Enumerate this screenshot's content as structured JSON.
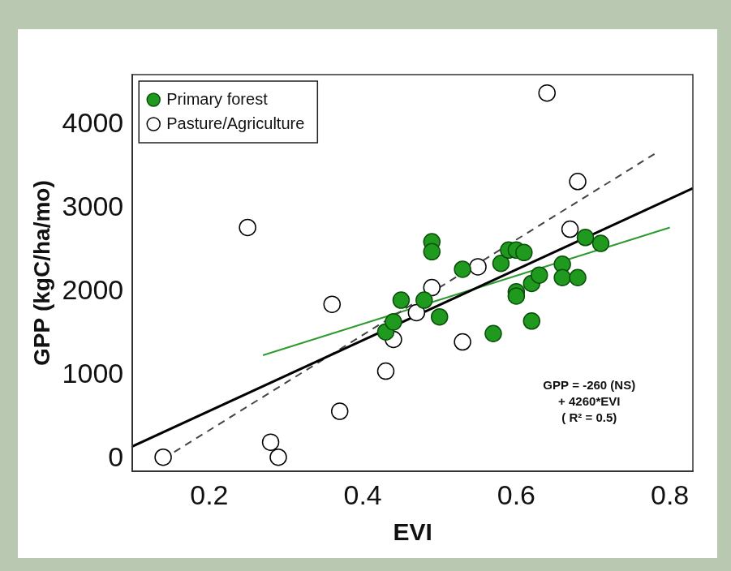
{
  "chart_data": {
    "type": "scatter",
    "x_label": "EVI",
    "y_label": "GPP (kgC/ha/mo)",
    "xlim": [
      0.1,
      0.83
    ],
    "xticks": [
      0.2,
      0.4,
      0.6,
      0.8
    ],
    "ylim": [
      -150,
      4600
    ],
    "yticks": [
      0,
      1000,
      2000,
      3000,
      4000
    ],
    "grid": false,
    "legend": "top-left",
    "series": [
      {
        "name": "Primary forest",
        "color": "#1f9a1f",
        "marker": "filled circle",
        "x": [
          0.43,
          0.44,
          0.45,
          0.48,
          0.49,
          0.49,
          0.5,
          0.53,
          0.57,
          0.58,
          0.59,
          0.6,
          0.6,
          0.6,
          0.61,
          0.62,
          0.62,
          0.63,
          0.66,
          0.66,
          0.68,
          0.69,
          0.71
        ],
        "values": [
          1520,
          1640,
          1900,
          1900,
          2600,
          2480,
          1700,
          2270,
          1500,
          2340,
          2500,
          2000,
          1950,
          2500,
          2470,
          2100,
          1650,
          2200,
          2330,
          2170,
          2170,
          2650,
          2580
        ]
      },
      {
        "name": "Pasture/Agriculture",
        "color": "#000000",
        "marker": "open circle",
        "x": [
          0.14,
          0.25,
          0.28,
          0.29,
          0.36,
          0.37,
          0.43,
          0.44,
          0.47,
          0.49,
          0.53,
          0.55,
          0.64,
          0.67,
          0.68
        ],
        "values": [
          20,
          2770,
          200,
          20,
          1850,
          570,
          1050,
          1430,
          1750,
          2050,
          1400,
          2300,
          4380,
          2750,
          3320
        ]
      },
      {
        "type": "line",
        "color": "#000000",
        "line_style": "solid",
        "x": [
          0.1,
          0.83
        ],
        "values": [
          150,
          3240
        ]
      },
      {
        "type": "line",
        "color": "#444444",
        "line_style": "dashed",
        "x": [
          0.14,
          0.78
        ],
        "values": [
          0,
          3650
        ]
      },
      {
        "type": "line",
        "color": "#2e9b2e",
        "line_style": "solid",
        "x": [
          0.27,
          0.8
        ],
        "values": [
          1240,
          2770
        ]
      }
    ],
    "annotations": [
      {
        "text": [
          "GPP = -260 (NS)",
          "+ 4260*EVI",
          "( R² = 0.5)"
        ],
        "x": 0.695,
        "y": 950
      }
    ]
  }
}
